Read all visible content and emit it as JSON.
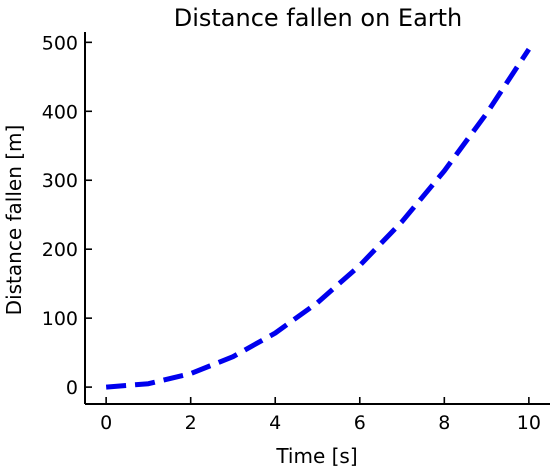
{
  "chart_data": {
    "type": "line",
    "title": "Distance fallen on Earth",
    "xlabel": "Time [s]",
    "ylabel": "Distance fallen [m]",
    "xlim": [
      -0.5,
      10.5
    ],
    "ylim": [
      -24.5,
      515
    ],
    "xticks": [
      0,
      2,
      4,
      6,
      8,
      10
    ],
    "yticks": [
      0,
      100,
      200,
      300,
      400,
      500
    ],
    "grid": false,
    "legend": "none",
    "series": [
      {
        "color": "#0000ee",
        "line_style": "dashed",
        "x": [
          0,
          1,
          2,
          3,
          4,
          5,
          6,
          7,
          8,
          9,
          10
        ],
        "y": [
          0,
          4.9,
          19.6,
          44.1,
          78.4,
          122.5,
          176.4,
          240.1,
          313.6,
          396.9,
          490
        ]
      }
    ]
  }
}
